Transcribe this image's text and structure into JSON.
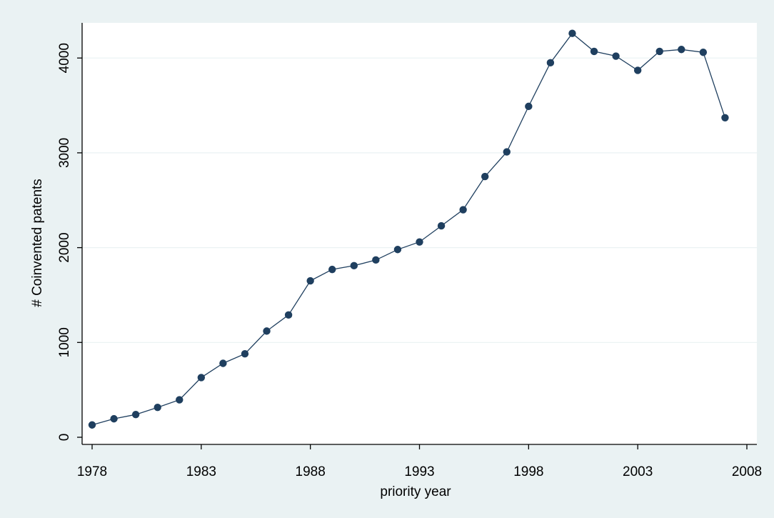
{
  "chart_data": {
    "type": "line",
    "title": "",
    "xlabel": "priority year",
    "ylabel": "# Coinvented patents",
    "xlim": [
      1978,
      2008
    ],
    "ylim": [
      0,
      4300
    ],
    "xticks": [
      1978,
      1983,
      1988,
      1993,
      1998,
      2003,
      2008
    ],
    "yticks": [
      0,
      1000,
      2000,
      3000,
      4000
    ],
    "grid": "horizontal",
    "legend": "none",
    "colors": {
      "background": "#eaf2f3",
      "plot_area": "#ffffff",
      "series": "#1f3f5f",
      "grid": "#eaf2f3"
    },
    "series": [
      {
        "x": [
          1978,
          1979,
          1980,
          1981,
          1982,
          1983,
          1984,
          1985,
          1986,
          1987,
          1988,
          1989,
          1990,
          1991,
          1992,
          1993,
          1994,
          1995,
          1996,
          1997,
          1998,
          1999,
          2000,
          2001,
          2002,
          2003,
          2004,
          2005,
          2006,
          2007
        ],
        "values": [
          130,
          195,
          240,
          315,
          395,
          630,
          780,
          880,
          1120,
          1290,
          1650,
          1770,
          1810,
          1870,
          1980,
          2060,
          2230,
          2400,
          2750,
          3010,
          3490,
          3950,
          4260,
          4070,
          4020,
          3870,
          4070,
          4090,
          4060,
          3370
        ]
      }
    ]
  }
}
